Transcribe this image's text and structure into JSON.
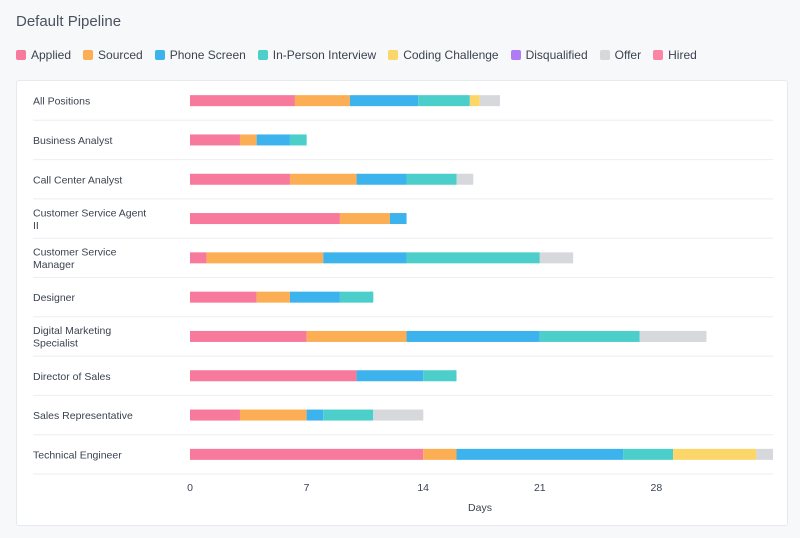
{
  "title": "Default Pipeline",
  "chart_data": {
    "type": "bar",
    "orientation": "horizontal",
    "stacked": true,
    "title": "Default Pipeline",
    "xlabel": "Days",
    "ylabel": "",
    "xlim": [
      0,
      35
    ],
    "xticks": [
      0,
      7,
      14,
      21,
      28
    ],
    "categories": [
      [
        "All Positions"
      ],
      [
        "Business Analyst"
      ],
      [
        "Call Center Analyst"
      ],
      [
        "Customer Service Agent",
        "II"
      ],
      [
        "Customer Service",
        "Manager"
      ],
      [
        "Designer"
      ],
      [
        "Digital Marketing",
        "Specialist"
      ],
      [
        "Director of Sales"
      ],
      [
        "Sales Representative"
      ],
      [
        "Technical Engineer"
      ]
    ],
    "series": [
      {
        "name": "Applied",
        "color": "#f7799c",
        "values": [
          6.3,
          3,
          6,
          9,
          1,
          4,
          7,
          10,
          3,
          14
        ]
      },
      {
        "name": "Sourced",
        "color": "#fcae55",
        "values": [
          3.3,
          1,
          4,
          3,
          7,
          2,
          6,
          0,
          4,
          2
        ]
      },
      {
        "name": "Phone Screen",
        "color": "#3db3ee",
        "values": [
          4.1,
          2,
          3,
          1,
          5,
          3,
          8,
          4,
          1,
          10
        ]
      },
      {
        "name": "In-Person Interview",
        "color": "#4ccfcb",
        "values": [
          3.1,
          1,
          3,
          0,
          8,
          2,
          6,
          2,
          3,
          3
        ]
      },
      {
        "name": "Coding Challenge",
        "color": "#fdd66a",
        "values": [
          0.6,
          0,
          0,
          0,
          0,
          0,
          0,
          0,
          0,
          5
        ]
      },
      {
        "name": "Disqualified",
        "color": "#b07cf5",
        "values": [
          0,
          0,
          0,
          0,
          0,
          0,
          0,
          0,
          0,
          0
        ]
      },
      {
        "name": "Offer",
        "color": "#d6d8dc",
        "values": [
          1.2,
          0,
          1,
          0,
          2,
          0,
          4,
          0,
          3,
          1
        ]
      },
      {
        "name": "Hired",
        "color": "#fb86a3",
        "values": [
          0,
          0,
          0,
          0,
          0,
          0,
          0,
          0,
          0,
          0
        ]
      }
    ],
    "grid": true,
    "legend_position": "top-left"
  }
}
